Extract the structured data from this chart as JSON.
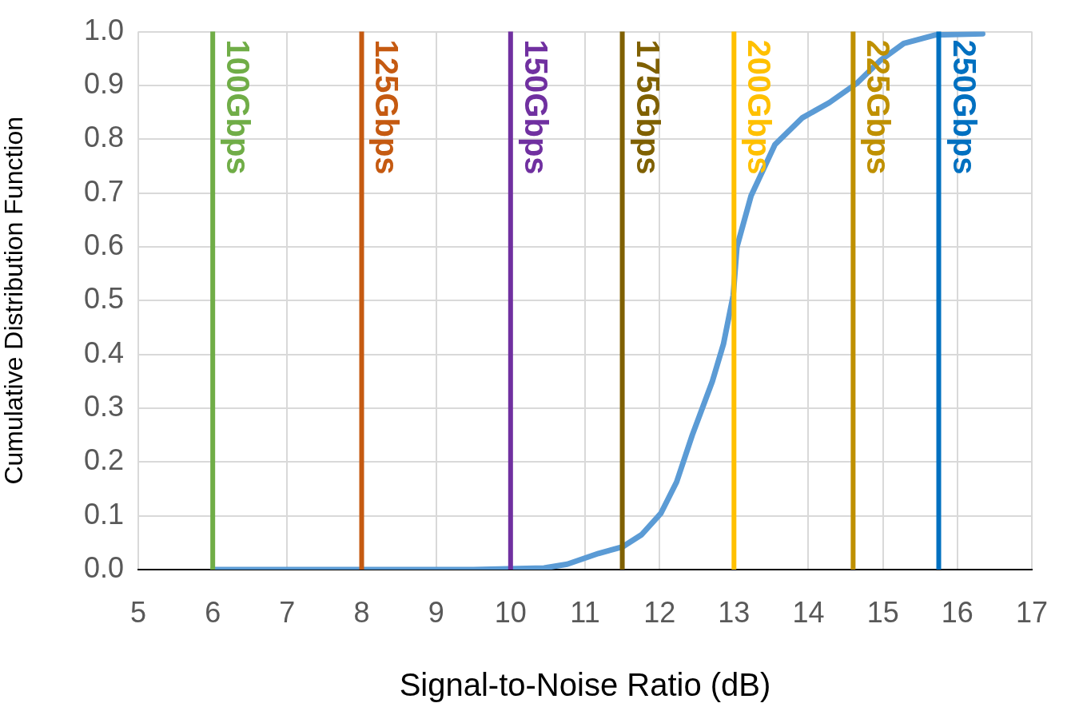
{
  "chart_data": {
    "type": "line",
    "xlabel": "Signal-to-Noise Ratio (dB)",
    "ylabel": "Cumulative Distribution Function",
    "xlim": [
      5,
      17
    ],
    "xticks": [
      5,
      6,
      7,
      8,
      9,
      10,
      11,
      12,
      13,
      14,
      15,
      16,
      17
    ],
    "ylim": [
      0,
      1
    ],
    "yticks": [
      {
        "value": 0,
        "label": "0.0"
      },
      {
        "value": 0.1,
        "label": "0.1"
      },
      {
        "value": 0.2,
        "label": "0.2"
      },
      {
        "value": 0.3,
        "label": "0.3"
      },
      {
        "value": 0.4,
        "label": "0.4"
      },
      {
        "value": 0.5,
        "label": "0.5"
      },
      {
        "value": 0.6,
        "label": "0.6"
      },
      {
        "value": 0.7,
        "label": "0.7"
      },
      {
        "value": 0.8,
        "label": "0.8"
      },
      {
        "value": 0.9,
        "label": "0.9"
      },
      {
        "value": 1,
        "label": "1.0"
      }
    ],
    "grid": true,
    "legend": false,
    "marker": "none",
    "line_style": "solid",
    "series": [
      {
        "color": "#5b9bd5",
        "x": [
          6.0,
          9.5,
          10.45,
          10.76,
          11.18,
          11.5,
          11.76,
          12.02,
          12.23,
          12.44,
          12.71,
          12.86,
          12.99,
          13.04,
          13.23,
          13.55,
          13.92,
          14.28,
          14.65,
          14.97,
          15.28,
          15.71,
          16.34
        ],
        "values": [
          0,
          0,
          0.003,
          0.01,
          0.03,
          0.042,
          0.065,
          0.105,
          0.163,
          0.25,
          0.35,
          0.42,
          0.51,
          0.6,
          0.695,
          0.79,
          0.84,
          0.868,
          0.904,
          0.947,
          0.978,
          0.994,
          0.996
        ]
      }
    ],
    "ref_lines": [
      {
        "axis": "x",
        "value": 6,
        "label": "100Gbps",
        "color": "#70ad47"
      },
      {
        "axis": "x",
        "value": 8,
        "label": "125Gbps",
        "color": "#c55a11"
      },
      {
        "axis": "x",
        "value": 10,
        "label": "150Gbps",
        "color": "#7030a0"
      },
      {
        "axis": "x",
        "value": 11.5,
        "label": "175Gbps",
        "color": "#7f6000"
      },
      {
        "axis": "x",
        "value": 13,
        "label": "200Gbps",
        "color": "#ffc000"
      },
      {
        "axis": "x",
        "value": 14.6,
        "label": "225Gbps",
        "color": "#bf9000"
      },
      {
        "axis": "x",
        "value": 15.75,
        "label": "250Gbps",
        "color": "#0070c0"
      }
    ]
  }
}
